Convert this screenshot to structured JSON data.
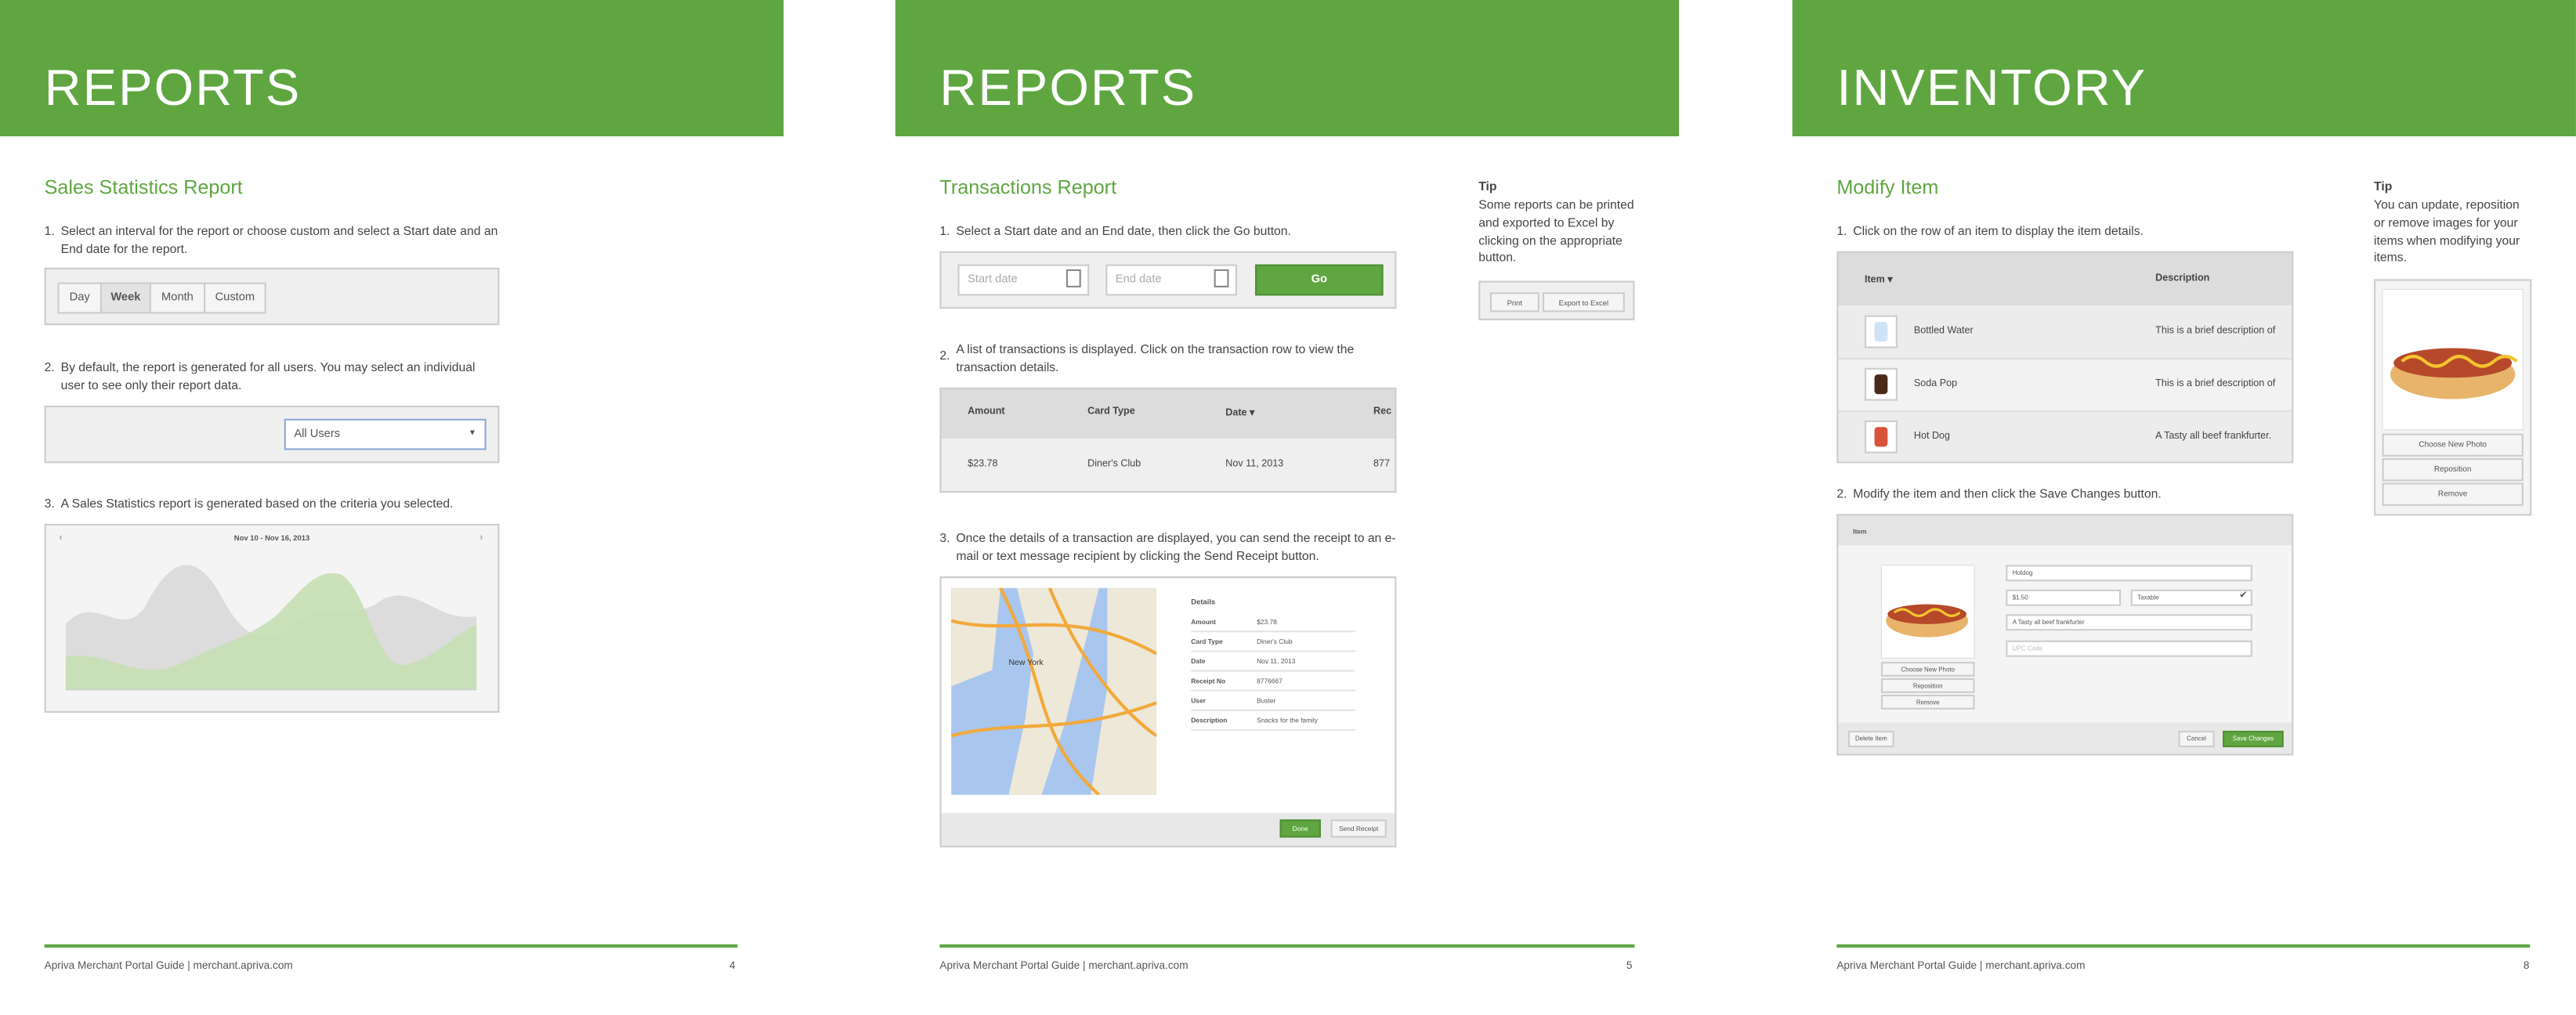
{
  "pages": [
    {
      "header": "REPORTS",
      "section_title": "Sales Statistics Report",
      "steps": [
        {
          "number": "1.",
          "text": "Select an interval for the report or choose custom and select a Start date and an End date for the report."
        },
        {
          "number": "2.",
          "text": "By default, the report is generated for all users. You may select an individual user to see only their report data."
        },
        {
          "number": "3.",
          "text": "A Sales Statistics report is generated based on the criteria you selected."
        }
      ],
      "interval_buttons": [
        "Day",
        "Week",
        "Month",
        "Custom"
      ],
      "user_select": "All Users",
      "chart_range": "Nov 10 - Nov 16, 2013",
      "footer": {
        "text": "Apriva Merchant Portal Guide  |  merchant.apriva.com",
        "page_number": "4"
      }
    },
    {
      "header": "REPORTS",
      "section_title": "Transactions Report",
      "steps": [
        {
          "number": "1.",
          "text": "Select a Start date and an End date, then click the Go button."
        },
        {
          "number": "2.",
          "text": "A list of transactions is displayed. Click on the transaction row to view the transaction details."
        },
        {
          "number": "3.",
          "text": "Once the details of a transaction are displayed, you can send the receipt to an e-mail or text message recipient by clicking the Send Receipt button."
        }
      ],
      "date_inputs": [
        "Start date",
        "End date"
      ],
      "go_button": "Go",
      "table": {
        "headers": [
          "Amount",
          "Card Type",
          "Date ▾",
          "Rec"
        ],
        "row": [
          "$23.78",
          "Diner's Club",
          "Nov 11, 2013",
          "877"
        ]
      },
      "map_label": "New York",
      "details": {
        "title": "Details",
        "rows": [
          [
            "Amount",
            "$23.78"
          ],
          [
            "Card Type",
            "Diner's Club"
          ],
          [
            "Date",
            "Nov 11, 2013"
          ],
          [
            "Receipt No",
            "8776667"
          ],
          [
            "User",
            "Buster"
          ],
          [
            "Description",
            "Snacks for the family"
          ]
        ]
      },
      "detail_buttons": [
        "Done",
        "Send Receipt"
      ],
      "tip": {
        "title": "Tip",
        "text": "Some reports can be printed and exported to Excel by clicking on the appropriate button.",
        "buttons": [
          "Print",
          "Export to Excel"
        ]
      },
      "footer": {
        "text": "Apriva Merchant Portal Guide  |  merchant.apriva.com",
        "page_number": "5"
      }
    },
    {
      "header": "INVENTORY",
      "section_title": "Modify Item",
      "steps": [
        {
          "number": "1.",
          "text": "Click on the row of an item to display the item details."
        },
        {
          "number": "2.",
          "text": "Modify the item and then click the Save Changes button."
        }
      ],
      "item_table": {
        "headers": [
          "Item ▾",
          "Description"
        ],
        "rows": [
          [
            "Bottled Water",
            "This is a brief description of"
          ],
          [
            "Soda Pop",
            "This is a brief description of"
          ],
          [
            "Hot Dog",
            "A Tasty all beef frankfurter."
          ]
        ]
      },
      "edit_form": {
        "title": "Item",
        "photo_actions": [
          "Choose New Photo",
          "Reposition",
          "Remove"
        ],
        "fields": [
          "Hotdog",
          "$1.50",
          "Taxable",
          "A Tasty all beef frankfurter",
          "UPC Code"
        ],
        "buttons": [
          "Delete Item",
          "Cancel",
          "Save Changes"
        ]
      },
      "tip": {
        "title": "Tip",
        "text": "You can update, reposition or remove images for your items when modifying your items.",
        "photo_actions": [
          "Choose New Photo",
          "Reposition",
          "Remove"
        ]
      },
      "footer": {
        "text": "Apriva Merchant Portal Guide  |  merchant.apriva.com",
        "page_number": "8"
      }
    }
  ]
}
